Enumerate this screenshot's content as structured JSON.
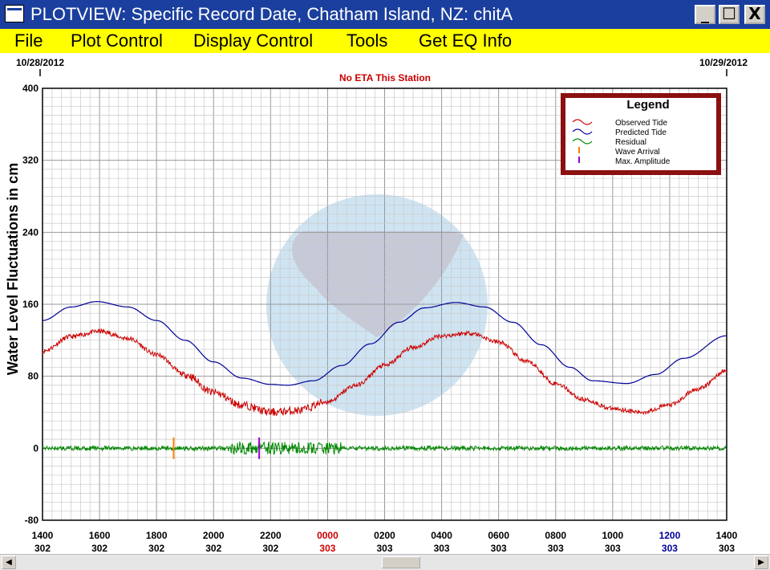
{
  "window": {
    "title": "PLOTVIEW: Specific Record Date, Chatham Island, NZ: chitA",
    "minimize_glyph": "_",
    "maximize_glyph": "☐",
    "close_glyph": "X"
  },
  "menu": [
    "File",
    "Plot Control",
    "Display Control",
    "Tools",
    "Get EQ Info"
  ],
  "header": {
    "date_left": "10/28/2012",
    "date_right": "10/29/2012",
    "status": "No ETA This Station"
  },
  "legend": {
    "title": "Legend",
    "items": [
      {
        "label": "Observed Tide",
        "color": "#cc0000",
        "icon": "wave"
      },
      {
        "label": "Predicted Tide",
        "color": "#000099",
        "icon": "wave"
      },
      {
        "label": "Residual",
        "color": "#008800",
        "icon": "wave"
      },
      {
        "label": "Wave Arrival",
        "color": "#ff8000",
        "icon": "tick"
      },
      {
        "label": "Max. Amplitude",
        "color": "#9900cc",
        "icon": "tick"
      }
    ]
  },
  "chart_data": {
    "type": "line",
    "ylabel": "Water Level Fluctuations in cm",
    "ylim": [
      -80,
      400
    ],
    "yticks": [
      "400",
      "320",
      "240",
      "160",
      "80",
      "0",
      "-80"
    ],
    "xlim": [
      0,
      24
    ],
    "xticks": [
      {
        "time": "1400",
        "day": "302",
        "color": "#000000"
      },
      {
        "time": "1600",
        "day": "302",
        "color": "#000000"
      },
      {
        "time": "1800",
        "day": "302",
        "color": "#000000"
      },
      {
        "time": "2000",
        "day": "302",
        "color": "#000000"
      },
      {
        "time": "2200",
        "day": "302",
        "color": "#000000"
      },
      {
        "time": "0000",
        "day": "303",
        "color": "#cc0000"
      },
      {
        "time": "0200",
        "day": "303",
        "color": "#000000"
      },
      {
        "time": "0400",
        "day": "303",
        "color": "#000000"
      },
      {
        "time": "0600",
        "day": "303",
        "color": "#000000"
      },
      {
        "time": "0800",
        "day": "303",
        "color": "#000000"
      },
      {
        "time": "1000",
        "day": "303",
        "color": "#000000"
      },
      {
        "time": "1200",
        "day": "303",
        "color": "#000099"
      },
      {
        "time": "1400",
        "day": "303",
        "color": "#000000"
      }
    ],
    "series": [
      {
        "name": "Predicted Tide",
        "color": "#000099",
        "x": [
          0,
          1,
          1.9,
          3,
          4,
          5,
          6,
          7,
          8,
          8.6,
          9.5,
          10.5,
          11.5,
          12.5,
          13.4,
          14.5,
          15.5,
          16.5,
          17.5,
          18.5,
          19.3,
          20.5,
          21.5,
          22.5,
          24
        ],
        "y": [
          142,
          157,
          163,
          157,
          142,
          120,
          96,
          78,
          71,
          70,
          75,
          92,
          116,
          140,
          156,
          162,
          157,
          140,
          115,
          90,
          75,
          72,
          82,
          100,
          125
        ]
      },
      {
        "name": "Observed Tide",
        "color": "#cc0000",
        "x": [
          0,
          1,
          2,
          3,
          4,
          5,
          6,
          7,
          8,
          9,
          10,
          11,
          12,
          13,
          14,
          15,
          16,
          17,
          18,
          19,
          20,
          21,
          22,
          23,
          24
        ],
        "y": [
          108,
          124,
          130,
          122,
          104,
          82,
          62,
          48,
          40,
          42,
          52,
          70,
          92,
          112,
          125,
          128,
          118,
          96,
          72,
          54,
          44,
          40,
          48,
          66,
          86
        ]
      },
      {
        "name": "Residual",
        "color": "#008800",
        "x": [
          0,
          24
        ],
        "y": [
          0,
          0
        ]
      }
    ],
    "markers": [
      {
        "name": "Wave Arrival",
        "x": 4.6,
        "ymin": -12,
        "ymax": 12,
        "color": "#ff8000"
      },
      {
        "name": "Max. Amplitude",
        "x": 7.6,
        "ymin": -12,
        "ymax": 12,
        "color": "#9900cc"
      }
    ]
  }
}
